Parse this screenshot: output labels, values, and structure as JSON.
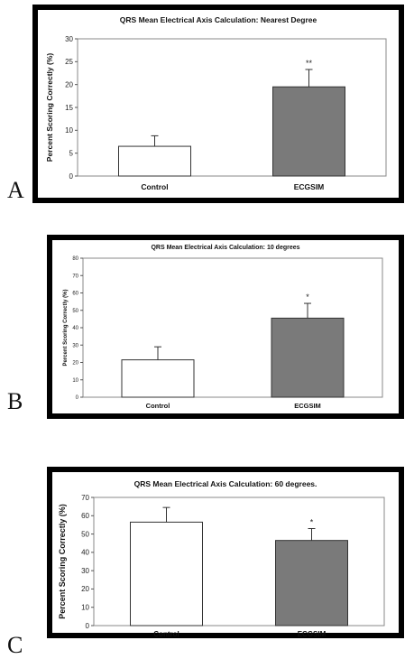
{
  "panels": [
    {
      "letter": "A",
      "chart": {
        "type": "bar",
        "title": "QRS Mean Electrical Axis Calculation:  Nearest Degree",
        "ylabel": "Percent Scoring Correctly (%)",
        "xlabel": "",
        "ylim": [
          0,
          30
        ],
        "yticks": [
          0,
          5,
          10,
          15,
          20,
          25,
          30
        ],
        "categories": [
          "Control",
          "ECGSIM"
        ],
        "values": [
          6.5,
          19.5
        ],
        "errors": [
          2.3,
          3.8
        ],
        "annotations": [
          "",
          "**"
        ],
        "bar_colors": [
          "#ffffff",
          "#7a7a7a"
        ],
        "grid": false
      }
    },
    {
      "letter": "B",
      "chart": {
        "type": "bar",
        "title": "QRS Mean Electrical Axis Calculation:  10 degrees",
        "ylabel": "Percent Scoring Correctly (%)",
        "xlabel": "",
        "ylim": [
          0,
          80
        ],
        "yticks": [
          0,
          10,
          20,
          30,
          40,
          50,
          60,
          70,
          80
        ],
        "categories": [
          "Control",
          "ECGSIM"
        ],
        "values": [
          21.5,
          45.5
        ],
        "errors": [
          7.5,
          8.5
        ],
        "annotations": [
          "",
          "*"
        ],
        "bar_colors": [
          "#ffffff",
          "#7a7a7a"
        ],
        "grid": false
      }
    },
    {
      "letter": "C",
      "chart": {
        "type": "bar",
        "title": "QRS Mean Electrical Axis Calculation:  60 degrees.",
        "ylabel": "Percent Scoring Correctly (%)",
        "xlabel": "",
        "ylim": [
          0,
          70
        ],
        "yticks": [
          0,
          10,
          20,
          30,
          40,
          50,
          60,
          70
        ],
        "categories": [
          "Control",
          "ECGSIM"
        ],
        "values": [
          56.5,
          46.5
        ],
        "errors": [
          8,
          6.5
        ],
        "annotations": [
          "",
          "*"
        ],
        "bar_colors": [
          "#ffffff",
          "#7a7a7a"
        ],
        "grid": false
      }
    }
  ],
  "chart_data": [
    {
      "type": "bar",
      "title": "QRS Mean Electrical Axis Calculation:  Nearest Degree",
      "ylabel": "Percent Scoring Correctly (%)",
      "xlabel": "",
      "categories": [
        "Control",
        "ECGSIM"
      ],
      "values": [
        6.5,
        19.5
      ],
      "errors": [
        2.3,
        3.8
      ],
      "ylim": [
        0,
        30
      ],
      "annotations": [
        "",
        "**"
      ],
      "grid": false
    },
    {
      "type": "bar",
      "title": "QRS Mean Electrical Axis Calculation:  10 degrees",
      "ylabel": "Percent Scoring Correctly (%)",
      "xlabel": "",
      "categories": [
        "Control",
        "ECGSIM"
      ],
      "values": [
        21.5,
        45.5
      ],
      "errors": [
        7.5,
        8.5
      ],
      "ylim": [
        0,
        80
      ],
      "annotations": [
        "",
        "*"
      ],
      "grid": false
    },
    {
      "type": "bar",
      "title": "QRS Mean Electrical Axis Calculation:  60 degrees.",
      "ylabel": "Percent Scoring Correctly (%)",
      "xlabel": "",
      "categories": [
        "Control",
        "ECGSIM"
      ],
      "values": [
        56.5,
        46.5
      ],
      "errors": [
        8,
        6.5
      ],
      "ylim": [
        0,
        70
      ],
      "annotations": [
        "",
        "*"
      ],
      "grid": false
    }
  ]
}
